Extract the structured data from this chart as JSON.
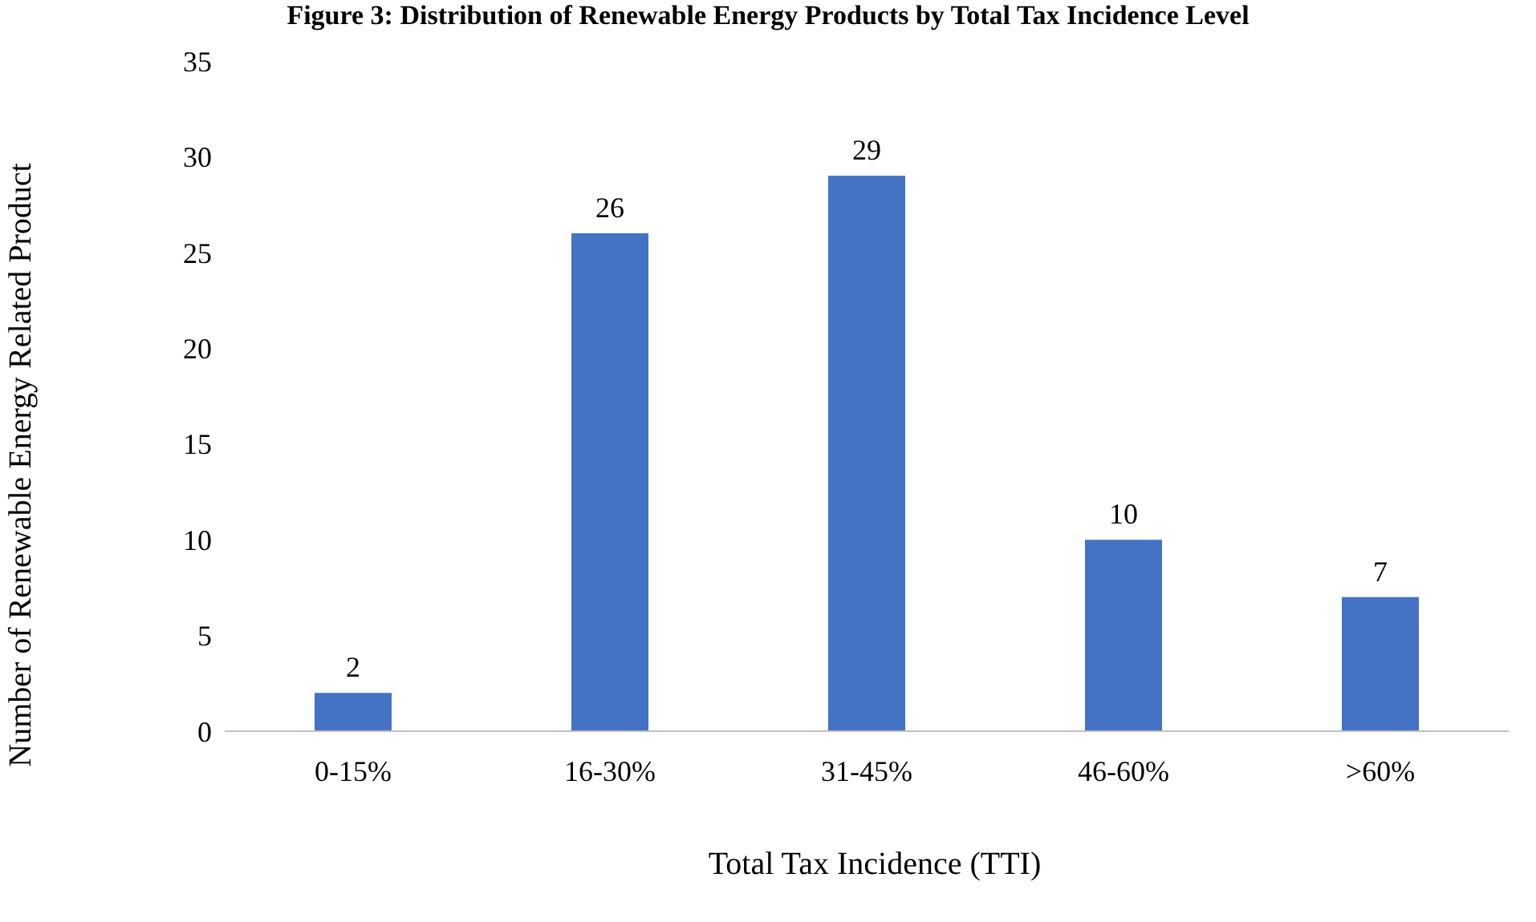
{
  "chart_data": {
    "type": "bar",
    "title": "Figure 3: Distribution of Renewable Energy Products by Total Tax Incidence Level",
    "xlabel": "Total Tax Incidence (TTI)",
    "ylabel": "Number of Renewable Energy Related Product",
    "categories": [
      "0-15%",
      "16-30%",
      "31-45%",
      "46-60%",
      ">60%"
    ],
    "values": [
      2,
      26,
      29,
      10,
      7
    ],
    "color": "#4472c4",
    "ylim": [
      0,
      35
    ],
    "yticks": [
      0,
      5,
      10,
      15,
      20,
      25,
      30,
      35
    ],
    "grid": false,
    "data_labels": true
  }
}
